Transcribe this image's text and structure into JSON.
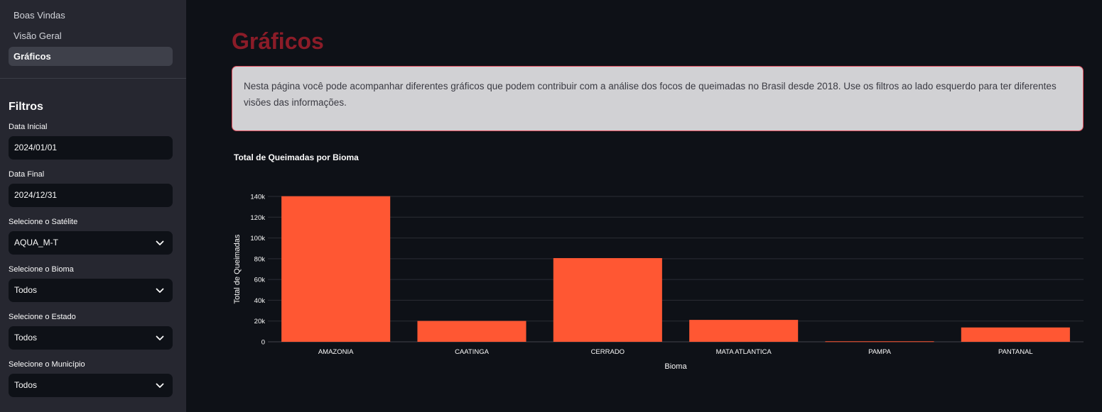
{
  "sidebar": {
    "nav": [
      {
        "label": "Boas Vindas",
        "active": false
      },
      {
        "label": "Visão Geral",
        "active": false
      },
      {
        "label": "Gráficos",
        "active": true
      }
    ],
    "filters_title": "Filtros",
    "fields": {
      "data_inicial": {
        "label": "Data Inicial",
        "value": "2024/01/01"
      },
      "data_final": {
        "label": "Data Final",
        "value": "2024/12/31"
      },
      "satelite": {
        "label": "Selecione o Satélite",
        "value": "AQUA_M-T"
      },
      "bioma": {
        "label": "Selecione o Bioma",
        "value": "Todos"
      },
      "estado": {
        "label": "Selecione o Estado",
        "value": "Todos"
      },
      "municipio": {
        "label": "Selecione o Município",
        "value": "Todos"
      }
    }
  },
  "main": {
    "title": "Gráficos",
    "info": "Nesta página você pode acompanhar diferentes gráficos que podem contribuir com a análise dos focos de queimadas no Brasil desde 2018. Use os filtros ao lado esquerdo para ter diferentes visões das informações."
  },
  "colors": {
    "bar": "#ff5733",
    "title": "#8b1c28",
    "info_border": "#e04c5c"
  },
  "chart_data": {
    "type": "bar",
    "title": "Total de Queimadas por Bioma",
    "xlabel": "Bioma",
    "ylabel": "Total de Queimadas",
    "categories": [
      "AMAZONIA",
      "CAATINGA",
      "CERRADO",
      "MATA ATLANTICA",
      "PAMPA",
      "PANTANAL"
    ],
    "values": [
      140200,
      20100,
      80600,
      21100,
      500,
      13800
    ],
    "ylim": [
      0,
      140000
    ],
    "yticks": [
      0,
      20000,
      40000,
      60000,
      80000,
      100000,
      120000,
      140000
    ],
    "ytick_labels": [
      "0",
      "20k",
      "40k",
      "60k",
      "80k",
      "100k",
      "120k",
      "140k"
    ],
    "grid": true,
    "legend": false
  }
}
